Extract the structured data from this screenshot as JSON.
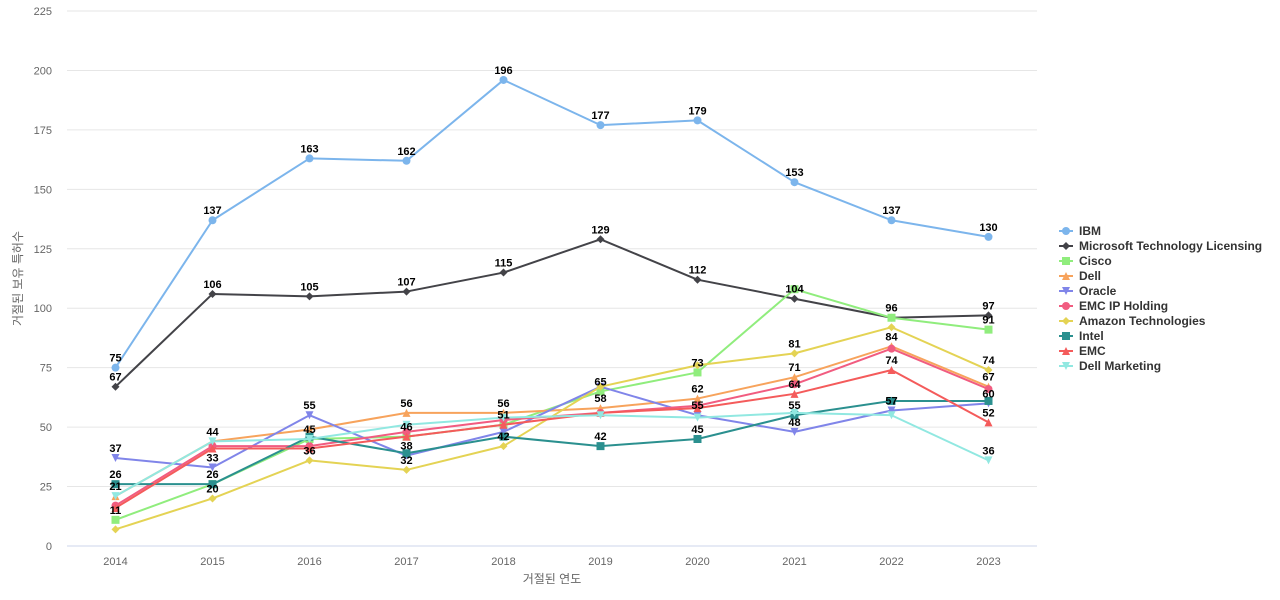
{
  "chart_data": {
    "type": "line",
    "title": "",
    "xlabel": "거절된 연도",
    "ylabel": "거절된 보유 특허수",
    "x": [
      "2014",
      "2015",
      "2016",
      "2017",
      "2018",
      "2019",
      "2020",
      "2021",
      "2022",
      "2023"
    ],
    "ylim": [
      0,
      225
    ],
    "yticks": [
      0,
      25,
      50,
      75,
      100,
      125,
      150,
      175,
      200,
      225
    ],
    "grid": true,
    "legend_position": "right",
    "series": [
      {
        "name": "IBM",
        "color": "#7cb5ec",
        "marker": "circle",
        "values": [
          75,
          137,
          163,
          162,
          196,
          177,
          179,
          153,
          137,
          130
        ]
      },
      {
        "name": "Microsoft Technology Licensing",
        "color": "#434348",
        "marker": "diamond",
        "values": [
          67,
          106,
          105,
          107,
          115,
          129,
          112,
          104,
          96,
          97
        ]
      },
      {
        "name": "Cisco",
        "color": "#90ed7d",
        "marker": "square",
        "values": [
          11,
          26,
          45,
          46,
          51,
          65,
          73,
          108,
          96,
          91
        ]
      },
      {
        "name": "Dell",
        "color": "#f7a35c",
        "marker": "triangle",
        "values": [
          21,
          44,
          49,
          56,
          56,
          58,
          62,
          71,
          84,
          67
        ]
      },
      {
        "name": "Oracle",
        "color": "#8085e9",
        "marker": "triangle-down",
        "values": [
          37,
          33,
          55,
          38,
          48,
          67,
          55,
          48,
          57,
          60
        ]
      },
      {
        "name": "EMC IP Holding",
        "color": "#f15c80",
        "marker": "circle",
        "values": [
          17,
          42,
          42,
          48,
          53,
          56,
          59,
          68,
          83,
          66
        ]
      },
      {
        "name": "Amazon Technologies",
        "color": "#e4d354",
        "marker": "diamond",
        "values": [
          7,
          20,
          36,
          32,
          42,
          67,
          76,
          81,
          92,
          74
        ]
      },
      {
        "name": "Intel",
        "color": "#2b908f",
        "marker": "square",
        "values": [
          26,
          26,
          46,
          39,
          46,
          42,
          45,
          55,
          61,
          61
        ]
      },
      {
        "name": "EMC",
        "color": "#f45b5b",
        "marker": "triangle",
        "values": [
          16,
          41,
          41,
          46,
          51,
          56,
          58,
          64,
          74,
          52
        ]
      },
      {
        "name": "Dell Marketing",
        "color": "#91e8e1",
        "marker": "triangle-down",
        "values": [
          21,
          44,
          45,
          51,
          54,
          55,
          54,
          56,
          55,
          36
        ]
      }
    ],
    "data_labels": [
      {
        "year": "2014",
        "value": 75,
        "text": "75"
      },
      {
        "year": "2014",
        "value": 67,
        "text": "67"
      },
      {
        "year": "2014",
        "value": 37,
        "text": "37"
      },
      {
        "year": "2014",
        "value": 26,
        "text": "26"
      },
      {
        "year": "2014",
        "value": 21,
        "text": "21"
      },
      {
        "year": "2014",
        "value": 11,
        "text": "11"
      },
      {
        "year": "2015",
        "value": 137,
        "text": "137"
      },
      {
        "year": "2015",
        "value": 106,
        "text": "106"
      },
      {
        "year": "2015",
        "value": 44,
        "text": "44"
      },
      {
        "year": "2015",
        "value": 33,
        "text": "33"
      },
      {
        "year": "2015",
        "value": 26,
        "text": "26"
      },
      {
        "year": "2015",
        "value": 20,
        "text": "20"
      },
      {
        "year": "2016",
        "value": 163,
        "text": "163"
      },
      {
        "year": "2016",
        "value": 105,
        "text": "105"
      },
      {
        "year": "2016",
        "value": 55,
        "text": "55"
      },
      {
        "year": "2016",
        "value": 45,
        "text": "45"
      },
      {
        "year": "2016",
        "value": 36,
        "text": "36"
      },
      {
        "year": "2017",
        "value": 162,
        "text": "162"
      },
      {
        "year": "2017",
        "value": 107,
        "text": "107"
      },
      {
        "year": "2017",
        "value": 56,
        "text": "56"
      },
      {
        "year": "2017",
        "value": 46,
        "text": "46"
      },
      {
        "year": "2017",
        "value": 38,
        "text": "38"
      },
      {
        "year": "2017",
        "value": 32,
        "text": "32"
      },
      {
        "year": "2018",
        "value": 196,
        "text": "196"
      },
      {
        "year": "2018",
        "value": 115,
        "text": "115"
      },
      {
        "year": "2018",
        "value": 56,
        "text": "56"
      },
      {
        "year": "2018",
        "value": 51,
        "text": "51"
      },
      {
        "year": "2018",
        "value": 42,
        "text": "42"
      },
      {
        "year": "2019",
        "value": 177,
        "text": "177"
      },
      {
        "year": "2019",
        "value": 129,
        "text": "129"
      },
      {
        "year": "2019",
        "value": 65,
        "text": "65"
      },
      {
        "year": "2019",
        "value": 58,
        "text": "58"
      },
      {
        "year": "2019",
        "value": 42,
        "text": "42"
      },
      {
        "year": "2020",
        "value": 179,
        "text": "179"
      },
      {
        "year": "2020",
        "value": 112,
        "text": "112"
      },
      {
        "year": "2020",
        "value": 73,
        "text": "73"
      },
      {
        "year": "2020",
        "value": 62,
        "text": "62"
      },
      {
        "year": "2020",
        "value": 55,
        "text": "55"
      },
      {
        "year": "2020",
        "value": 45,
        "text": "45"
      },
      {
        "year": "2021",
        "value": 153,
        "text": "153"
      },
      {
        "year": "2021",
        "value": 104,
        "text": "104"
      },
      {
        "year": "2021",
        "value": 81,
        "text": "81"
      },
      {
        "year": "2021",
        "value": 71,
        "text": "71"
      },
      {
        "year": "2021",
        "value": 64,
        "text": "64"
      },
      {
        "year": "2021",
        "value": 55,
        "text": "55"
      },
      {
        "year": "2021",
        "value": 48,
        "text": "48"
      },
      {
        "year": "2022",
        "value": 137,
        "text": "137"
      },
      {
        "year": "2022",
        "value": 96,
        "text": "96"
      },
      {
        "year": "2022",
        "value": 84,
        "text": "84"
      },
      {
        "year": "2022",
        "value": 74,
        "text": "74"
      },
      {
        "year": "2022",
        "value": 57,
        "text": "57"
      },
      {
        "year": "2023",
        "value": 130,
        "text": "130"
      },
      {
        "year": "2023",
        "value": 97,
        "text": "97"
      },
      {
        "year": "2023",
        "value": 91,
        "text": "91"
      },
      {
        "year": "2023",
        "value": 74,
        "text": "74"
      },
      {
        "year": "2023",
        "value": 67,
        "text": "67"
      },
      {
        "year": "2023",
        "value": 60,
        "text": "60"
      },
      {
        "year": "2023",
        "value": 52,
        "text": "52"
      },
      {
        "year": "2023",
        "value": 36,
        "text": "36"
      }
    ]
  }
}
